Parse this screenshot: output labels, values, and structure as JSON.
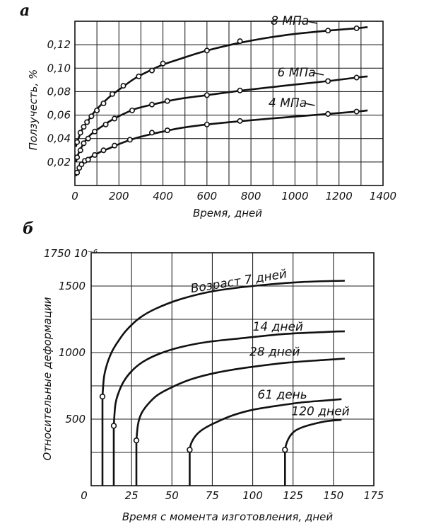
{
  "chart_data": [
    {
      "type": "line",
      "panel_label": "а",
      "xlabel": "Время, дней",
      "ylabel": "Ползучесть, %",
      "xlim": [
        0,
        1400
      ],
      "ylim": [
        0,
        0.14
      ],
      "x_ticks": [
        "0",
        "200",
        "400",
        "600",
        "800",
        "1000",
        "1200",
        "1400"
      ],
      "y_ticks": [
        "0,02",
        "0,04",
        "0,06",
        "0,08",
        "0,10",
        "0,12"
      ],
      "grid": true,
      "series": [
        {
          "name": "8 МПа",
          "x": [
            5,
            10,
            18,
            28,
            40,
            55,
            70,
            90,
            120,
            160,
            210,
            270,
            330,
            400,
            480,
            600,
            760,
            950,
            1150,
            1280,
            1330
          ],
          "y": [
            0.033,
            0.037,
            0.041,
            0.046,
            0.05,
            0.054,
            0.058,
            0.063,
            0.069,
            0.076,
            0.083,
            0.091,
            0.097,
            0.103,
            0.108,
            0.115,
            0.122,
            0.128,
            0.132,
            0.134,
            0.135
          ],
          "markers_x": [
            10,
            25,
            40,
            55,
            75,
            100,
            130,
            170,
            220,
            290,
            350,
            400,
            600,
            750,
            1150,
            1280
          ],
          "markers_y": [
            0.037,
            0.045,
            0.05,
            0.054,
            0.059,
            0.064,
            0.07,
            0.078,
            0.085,
            0.093,
            0.098,
            0.104,
            0.115,
            0.123,
            0.132,
            0.134
          ]
        },
        {
          "name": "6 МПа",
          "x": [
            5,
            10,
            18,
            28,
            40,
            55,
            70,
            90,
            120,
            160,
            210,
            270,
            330,
            400,
            480,
            600,
            760,
            950,
            1150,
            1280,
            1330
          ],
          "y": [
            0.02,
            0.024,
            0.028,
            0.032,
            0.036,
            0.04,
            0.043,
            0.046,
            0.05,
            0.055,
            0.06,
            0.065,
            0.068,
            0.071,
            0.074,
            0.077,
            0.081,
            0.085,
            0.089,
            0.092,
            0.093
          ],
          "markers_x": [
            10,
            25,
            40,
            60,
            90,
            140,
            180,
            260,
            350,
            420,
            600,
            750,
            1150,
            1280
          ],
          "markers_y": [
            0.024,
            0.03,
            0.036,
            0.04,
            0.046,
            0.052,
            0.057,
            0.064,
            0.069,
            0.072,
            0.077,
            0.081,
            0.089,
            0.092
          ]
        },
        {
          "name": "4 МПа",
          "x": [
            5,
            10,
            18,
            28,
            40,
            55,
            70,
            90,
            120,
            160,
            210,
            270,
            330,
            400,
            480,
            600,
            760,
            950,
            1150,
            1280,
            1330
          ],
          "y": [
            0.008,
            0.011,
            0.014,
            0.017,
            0.02,
            0.022,
            0.024,
            0.026,
            0.029,
            0.032,
            0.036,
            0.04,
            0.043,
            0.046,
            0.049,
            0.052,
            0.055,
            0.058,
            0.061,
            0.063,
            0.064
          ],
          "markers_x": [
            10,
            20,
            30,
            45,
            60,
            90,
            130,
            180,
            250,
            350,
            420,
            600,
            750,
            1150,
            1280
          ],
          "markers_y": [
            0.011,
            0.015,
            0.018,
            0.021,
            0.022,
            0.026,
            0.03,
            0.034,
            0.039,
            0.045,
            0.047,
            0.052,
            0.055,
            0.061,
            0.063
          ]
        }
      ]
    },
    {
      "type": "line",
      "panel_label": "б",
      "xlabel": "Время с момента изготовления, дней",
      "ylabel": "Относительные деформации",
      "y_unit_label": "1750   10⁻⁶",
      "xlim": [
        0,
        175
      ],
      "ylim": [
        0,
        1750
      ],
      "x_ticks": [
        "0",
        "25",
        "50",
        "75",
        "100",
        "125",
        "150",
        "175"
      ],
      "y_ticks": [
        "500",
        "1000",
        "1500"
      ],
      "grid": true,
      "series": [
        {
          "name": "Возраст 7 дней",
          "load_age": 7,
          "x": [
            7,
            8,
            10,
            13,
            17,
            22,
            30,
            40,
            55,
            75,
            100,
            130,
            157
          ],
          "y": [
            670,
            820,
            920,
            1010,
            1090,
            1170,
            1260,
            1330,
            1400,
            1460,
            1500,
            1530,
            1540
          ]
        },
        {
          "name": "14 дней",
          "load_age": 14,
          "x": [
            14,
            15,
            17,
            20,
            25,
            32,
            42,
            55,
            72,
            95,
            120,
            145,
            157
          ],
          "y": [
            450,
            610,
            700,
            780,
            860,
            930,
            990,
            1040,
            1080,
            1110,
            1140,
            1155,
            1160
          ]
        },
        {
          "name": "28 дней",
          "load_age": 28,
          "x": [
            28,
            29,
            31,
            35,
            41,
            50,
            62,
            78,
            98,
            122,
            145,
            157
          ],
          "y": [
            340,
            460,
            540,
            610,
            680,
            740,
            800,
            850,
            890,
            925,
            945,
            955
          ]
        },
        {
          "name": "61 день",
          "load_age": 61,
          "x": [
            61,
            62,
            65,
            70,
            78,
            88,
            100,
            115,
            130,
            145,
            155
          ],
          "y": [
            270,
            320,
            380,
            430,
            480,
            530,
            570,
            600,
            625,
            640,
            650
          ]
        },
        {
          "name": "120 дней",
          "load_age": 120,
          "x": [
            120,
            121,
            123,
            126,
            131,
            138,
            146,
            155
          ],
          "y": [
            270,
            320,
            370,
            410,
            440,
            465,
            485,
            495
          ]
        }
      ]
    }
  ]
}
